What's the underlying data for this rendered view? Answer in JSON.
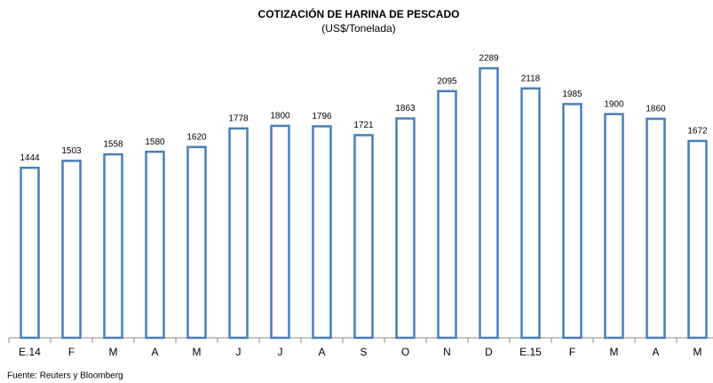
{
  "chart_data": {
    "type": "bar",
    "title": "COTIZACIÓN DE HARINA DE PESCADO",
    "subtitle": "(US$/Tonelada)",
    "categories": [
      "E.14",
      "F",
      "M",
      "A",
      "M",
      "J",
      "J",
      "A",
      "S",
      "O",
      "N",
      "D",
      "E.15",
      "F",
      "M",
      "A",
      "M"
    ],
    "values": [
      1444,
      1503,
      1558,
      1580,
      1620,
      1778,
      1800,
      1796,
      1721,
      1863,
      2095,
      2289,
      2118,
      1985,
      1900,
      1860,
      1672
    ],
    "color": "#4a7ebb",
    "ylim": [
      0,
      2500
    ],
    "source": "Fuente: Reuters y Bloomberg"
  }
}
